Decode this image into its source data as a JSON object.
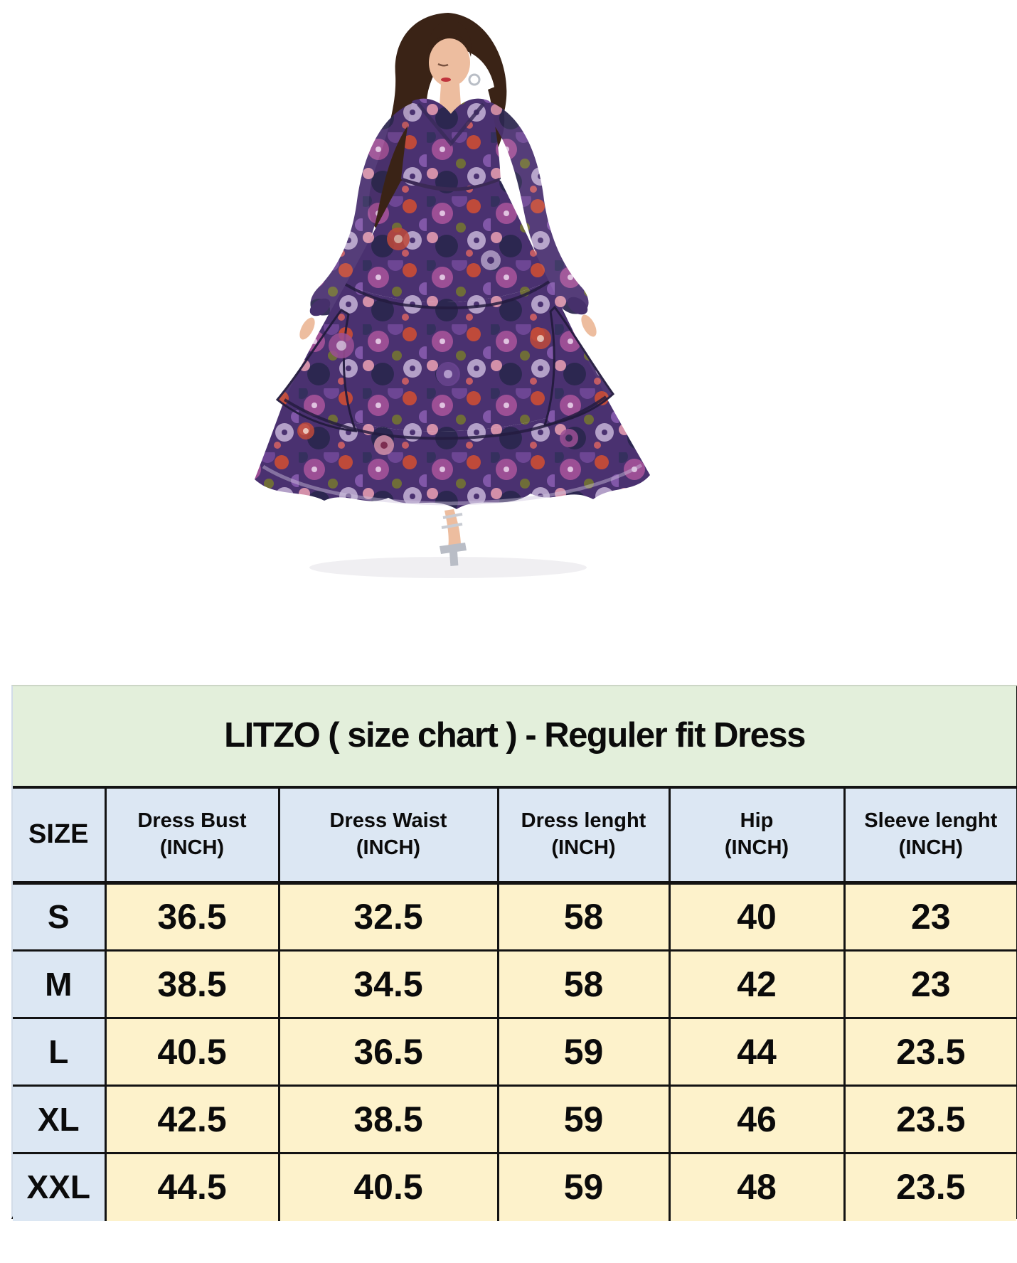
{
  "size_chart": {
    "title": "LITZO ( size chart ) - Reguler fit Dress",
    "columns": [
      {
        "label": "SIZE",
        "unit": ""
      },
      {
        "label": "Dress Bust",
        "unit": "(INCH)"
      },
      {
        "label": "Dress Waist",
        "unit": "(INCH)"
      },
      {
        "label": "Dress lenght",
        "unit": "(INCH)"
      },
      {
        "label": "Hip",
        "unit": "(INCH)"
      },
      {
        "label": "Sleeve lenght",
        "unit": "(INCH)"
      }
    ],
    "rows": [
      [
        "S",
        36.5,
        32.5,
        58,
        40,
        23
      ],
      [
        "M",
        38.5,
        34.5,
        58,
        42,
        23
      ],
      [
        "L",
        40.5,
        36.5,
        59,
        44,
        23.5
      ],
      [
        "XL",
        42.5,
        38.5,
        59,
        46,
        23.5
      ],
      [
        "XXL",
        44.5,
        40.5,
        59,
        48,
        23.5
      ]
    ]
  },
  "chart_data": {
    "type": "table",
    "title": "LITZO ( size chart ) - Reguler fit Dress",
    "columns": [
      "SIZE",
      "Dress Bust (INCH)",
      "Dress Waist (INCH)",
      "Dress lenght (INCH)",
      "Hip (INCH)",
      "Sleeve lenght (INCH)"
    ],
    "rows": [
      [
        "S",
        36.5,
        32.5,
        58,
        40,
        23
      ],
      [
        "M",
        38.5,
        34.5,
        58,
        42,
        23
      ],
      [
        "L",
        40.5,
        36.5,
        59,
        44,
        23.5
      ],
      [
        "XL",
        42.5,
        38.5,
        59,
        46,
        23.5
      ],
      [
        "XXL",
        44.5,
        40.5,
        59,
        48,
        23.5
      ]
    ]
  },
  "colors": {
    "table": {
      "title-bg": "#e3efdb",
      "header-bg": "#dce7f3",
      "label-bg": "#dce7f3",
      "data-bg": "#fdf2cb",
      "grid": "#131313"
    },
    "dress_palette": [
      "#4a3170",
      "#9c4f95",
      "#bf4a3a",
      "#b3a0c8",
      "#2c2750",
      "#6f6d38",
      "#3a2316",
      "#edbd9f",
      "#c6c9d2"
    ]
  }
}
